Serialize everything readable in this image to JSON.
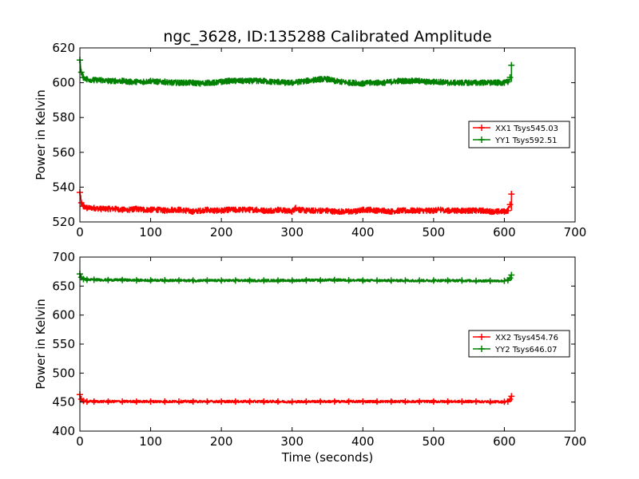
{
  "chart_data": [
    {
      "type": "line",
      "title": "ngc_3628, ID:135288 Calibrated Amplitude",
      "xlabel": "",
      "ylabel": "Power in Kelvin",
      "xlim": [
        0,
        700
      ],
      "ylim": [
        520,
        620
      ],
      "xticks": [
        "0",
        "100",
        "200",
        "300",
        "400",
        "500",
        "600",
        "700"
      ],
      "yticks": [
        "520",
        "540",
        "560",
        "580",
        "600",
        "620"
      ],
      "legend_position": "center-right",
      "series": [
        {
          "name": "XX1 Tsys545.03",
          "color": "#ff0000",
          "marker": "+",
          "x": [
            0,
            2,
            5,
            10,
            20,
            30,
            40,
            50,
            60,
            70,
            80,
            90,
            100,
            110,
            120,
            130,
            140,
            150,
            160,
            170,
            180,
            190,
            200,
            210,
            220,
            230,
            240,
            250,
            260,
            270,
            280,
            290,
            300,
            305,
            310,
            320,
            330,
            340,
            350,
            360,
            370,
            380,
            390,
            400,
            410,
            420,
            430,
            440,
            450,
            460,
            470,
            480,
            490,
            500,
            510,
            520,
            530,
            540,
            550,
            560,
            570,
            580,
            590,
            600,
            605,
            608,
            610
          ],
          "y": [
            537,
            531,
            529,
            528,
            528,
            527.5,
            527.5,
            527.5,
            527,
            527,
            527.5,
            527,
            527,
            527,
            526.5,
            527,
            527,
            526.5,
            526,
            526.5,
            527,
            526.5,
            526.5,
            527,
            527,
            527,
            527,
            527,
            526.5,
            526.5,
            527,
            526.5,
            526,
            528,
            527,
            526.5,
            526.5,
            526.5,
            526.5,
            526,
            526,
            526,
            526,
            527,
            527,
            526.5,
            526.5,
            526,
            526.5,
            526.5,
            526.5,
            526.5,
            526.5,
            526.5,
            527,
            526.5,
            526.5,
            526.5,
            526.5,
            526.5,
            526.5,
            526,
            526,
            526,
            526.5,
            530,
            536
          ]
        },
        {
          "name": "YY1 Tsys592.51",
          "color": "#008000",
          "marker": "+",
          "x": [
            0,
            2,
            5,
            10,
            20,
            30,
            40,
            50,
            60,
            70,
            80,
            90,
            100,
            110,
            120,
            130,
            140,
            150,
            160,
            170,
            180,
            190,
            200,
            210,
            220,
            230,
            240,
            250,
            260,
            270,
            280,
            290,
            300,
            310,
            320,
            330,
            340,
            350,
            360,
            370,
            380,
            390,
            400,
            410,
            420,
            430,
            440,
            450,
            460,
            470,
            480,
            490,
            500,
            510,
            520,
            530,
            540,
            550,
            560,
            570,
            580,
            590,
            600,
            605,
            608,
            610
          ],
          "y": [
            613,
            606,
            603,
            602,
            601.5,
            601.5,
            601,
            601,
            601,
            600.5,
            600.5,
            600.5,
            601,
            600.5,
            600.5,
            600,
            600,
            600,
            600,
            599.5,
            600,
            600,
            600.5,
            601,
            601,
            601,
            601,
            601,
            601,
            600.5,
            600.5,
            600,
            600,
            600.5,
            601,
            601.5,
            602,
            602,
            601,
            600.5,
            600,
            600,
            599.5,
            600,
            600,
            600,
            600.5,
            601,
            601,
            601,
            601,
            600.5,
            600.5,
            600.5,
            600,
            600,
            600,
            600,
            600,
            600,
            600,
            600,
            600,
            600.5,
            603,
            610
          ]
        }
      ]
    },
    {
      "type": "line",
      "title": "",
      "xlabel": "Time (seconds)",
      "ylabel": "Power in Kelvin",
      "xlim": [
        0,
        700
      ],
      "ylim": [
        400,
        700
      ],
      "xticks": [
        "0",
        "100",
        "200",
        "300",
        "400",
        "500",
        "600",
        "700"
      ],
      "yticks": [
        "400",
        "450",
        "500",
        "550",
        "600",
        "650",
        "700"
      ],
      "legend_position": "center-right",
      "series": [
        {
          "name": "XX2 Tsys454.76",
          "color": "#ff0000",
          "marker": "+",
          "x": [
            0,
            2,
            5,
            10,
            20,
            40,
            60,
            80,
            100,
            120,
            140,
            160,
            180,
            200,
            220,
            240,
            260,
            280,
            300,
            320,
            340,
            360,
            380,
            400,
            420,
            440,
            460,
            480,
            500,
            520,
            540,
            560,
            580,
            600,
            605,
            608,
            610
          ],
          "y": [
            463,
            455,
            452,
            451,
            451,
            451,
            451,
            451,
            451,
            451,
            451,
            451,
            451,
            451,
            451,
            451,
            451,
            451,
            450.5,
            451,
            451,
            451,
            451,
            451,
            451,
            451,
            451,
            451,
            451,
            451,
            451,
            451,
            450.5,
            450.5,
            451,
            455,
            460
          ]
        },
        {
          "name": "YY2 Tsys646.07",
          "color": "#008000",
          "marker": "+",
          "x": [
            0,
            2,
            5,
            10,
            20,
            40,
            60,
            80,
            100,
            120,
            140,
            160,
            180,
            200,
            220,
            240,
            260,
            280,
            300,
            320,
            340,
            360,
            380,
            400,
            420,
            440,
            460,
            480,
            500,
            520,
            540,
            560,
            580,
            600,
            605,
            608,
            610
          ],
          "y": [
            671,
            665,
            662,
            661,
            661,
            660.5,
            660.5,
            660,
            660,
            660,
            659.5,
            659.5,
            659.5,
            659.5,
            659.5,
            659.5,
            659.5,
            659.5,
            659.5,
            660,
            660,
            660.5,
            660,
            659.5,
            659.5,
            659.5,
            659.5,
            659.5,
            659.5,
            659.5,
            659.5,
            659,
            659,
            659,
            660,
            664,
            669
          ]
        }
      ]
    }
  ]
}
